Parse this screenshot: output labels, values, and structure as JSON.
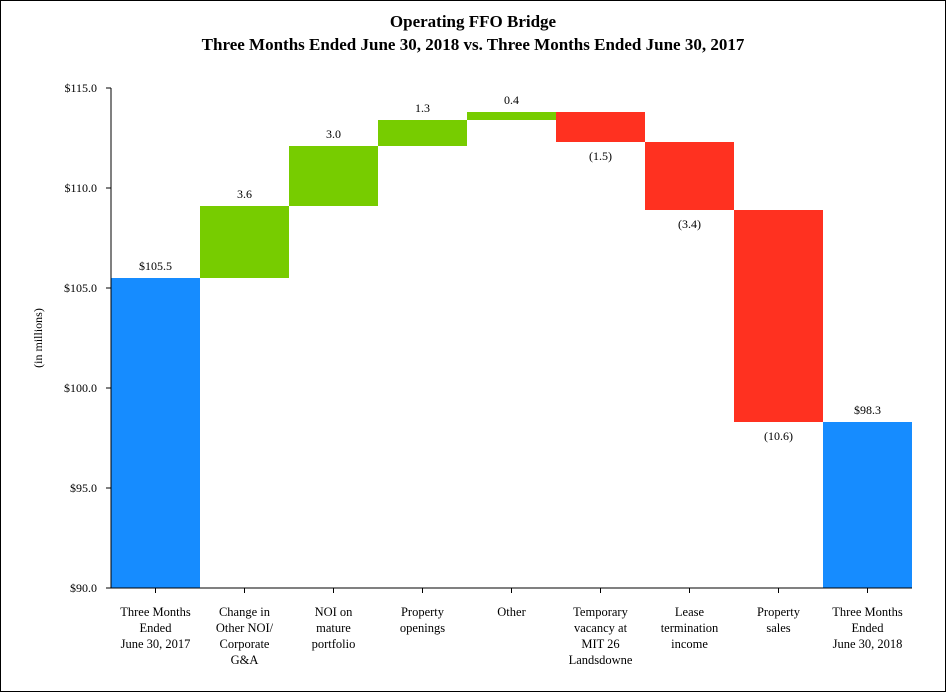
{
  "chart_data": {
    "type": "waterfall",
    "title": "Operating FFO Bridge",
    "subtitle": "Three Months Ended June 30, 2018 vs. Three Months Ended June 30, 2017",
    "y_label": "(in millions)",
    "categories": [
      "Three Months\nEnded\nJune 30, 2017",
      "Change in\nOther NOI/\nCorporate\nG&A",
      "NOI on\nmature\nportfolio",
      "Property\nopenings",
      "Other",
      "Temporary\nvacancy at\nMIT 26\nLandsdowne",
      "Lease\ntermination\nincome",
      "Property\nsales",
      "Three Months\nEnded\nJune 30, 2018"
    ],
    "measures": [
      "total",
      "relative",
      "relative",
      "relative",
      "relative",
      "relative",
      "relative",
      "relative",
      "total"
    ],
    "values": [
      105.5,
      3.6,
      3.0,
      1.3,
      0.4,
      -1.5,
      -3.4,
      -10.6,
      98.3
    ],
    "value_labels": [
      "$105.5",
      "3.6",
      "3.0",
      "1.3",
      "0.4",
      "(1.5)",
      "(3.4)",
      "(10.6)",
      "$98.3"
    ],
    "colors": {
      "total": "#168cff",
      "increase": "#77cc00",
      "decrease": "#ff3120"
    },
    "ylim": [
      90,
      115
    ],
    "yticks": [
      {
        "value": 90,
        "label": "$90.0"
      },
      {
        "value": 95,
        "label": "$95.0"
      },
      {
        "value": 100,
        "label": "$100.0"
      },
      {
        "value": 105,
        "label": "$105.0"
      },
      {
        "value": 110,
        "label": "$110.0"
      },
      {
        "value": 115,
        "label": "$115.0"
      }
    ],
    "grid": false
  }
}
